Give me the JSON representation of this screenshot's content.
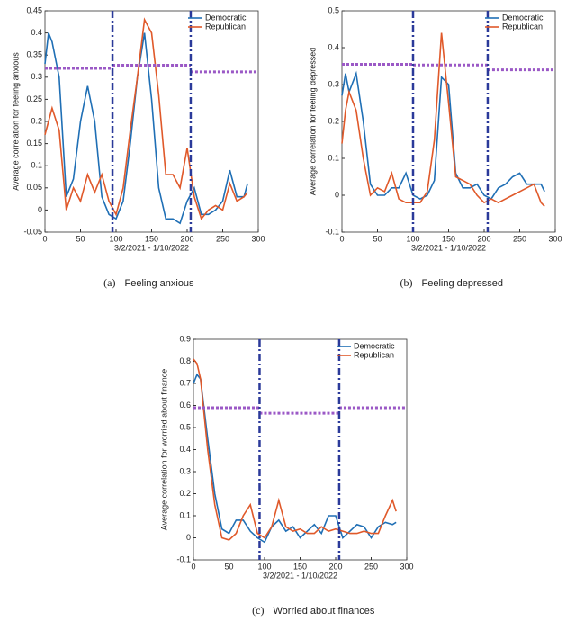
{
  "chart_data": [
    {
      "type": "line",
      "caption_label": "(a)",
      "caption": "Feeling anxious",
      "x_label": "3/2/2021 - 1/10/2022",
      "y_label": "Average correlation for feeling anxious",
      "xlim": [
        0,
        300
      ],
      "xticks": [
        0,
        50,
        100,
        150,
        200,
        250,
        300
      ],
      "ylim": [
        -0.05,
        0.45
      ],
      "yticks": [
        -0.05,
        0,
        0.05,
        0.1,
        0.15,
        0.2,
        0.25,
        0.3,
        0.35,
        0.4,
        0.45
      ],
      "x": [
        0,
        5,
        10,
        20,
        30,
        40,
        50,
        60,
        70,
        80,
        90,
        100,
        110,
        120,
        130,
        140,
        150,
        160,
        170,
        180,
        190,
        200,
        210,
        220,
        230,
        240,
        250,
        260,
        270,
        280,
        285
      ],
      "series": [
        {
          "name": "Democratic",
          "color": "#1f6fb5",
          "values": [
            0.33,
            0.4,
            0.38,
            0.3,
            0.03,
            0.07,
            0.2,
            0.28,
            0.2,
            0.03,
            -0.01,
            -0.02,
            0.02,
            0.15,
            0.3,
            0.4,
            0.25,
            0.05,
            -0.02,
            -0.02,
            -0.03,
            0.02,
            0.05,
            -0.01,
            -0.01,
            0.0,
            0.02,
            0.09,
            0.03,
            0.03,
            0.06
          ]
        },
        {
          "name": "Republican",
          "color": "#e0592a",
          "values": [
            0.17,
            0.2,
            0.23,
            0.18,
            0.0,
            0.05,
            0.02,
            0.08,
            0.04,
            0.08,
            0.02,
            -0.01,
            0.05,
            0.18,
            0.3,
            0.43,
            0.4,
            0.26,
            0.08,
            0.08,
            0.05,
            0.14,
            0.03,
            -0.02,
            0.0,
            0.01,
            0.0,
            0.06,
            0.02,
            0.03,
            0.04
          ]
        }
      ],
      "vlines": [
        95,
        205
      ],
      "hlines": [
        {
          "x": [
            0,
            95
          ],
          "y": 0.32
        },
        {
          "x": [
            95,
            205
          ],
          "y": 0.327
        },
        {
          "x": [
            205,
            300
          ],
          "y": 0.312
        }
      ]
    },
    {
      "type": "line",
      "caption_label": "(b)",
      "caption": "Feeling depressed",
      "x_label": "3/2/2021 - 1/10/2022",
      "y_label": "Average correlation for feeling depressed",
      "xlim": [
        0,
        300
      ],
      "xticks": [
        0,
        50,
        100,
        150,
        200,
        250,
        300
      ],
      "ylim": [
        -0.1,
        0.5
      ],
      "yticks": [
        -0.1,
        0,
        0.1,
        0.2,
        0.3,
        0.4,
        0.5
      ],
      "x": [
        0,
        5,
        10,
        20,
        30,
        40,
        50,
        60,
        70,
        80,
        90,
        100,
        110,
        120,
        130,
        140,
        150,
        160,
        170,
        180,
        190,
        200,
        210,
        220,
        230,
        240,
        250,
        260,
        270,
        280,
        285
      ],
      "series": [
        {
          "name": "Democratic",
          "color": "#1f6fb5",
          "values": [
            0.27,
            0.33,
            0.28,
            0.33,
            0.2,
            0.03,
            0.0,
            0.0,
            0.02,
            0.02,
            0.06,
            0.0,
            -0.01,
            0.0,
            0.04,
            0.32,
            0.3,
            0.06,
            0.02,
            0.02,
            0.03,
            0.0,
            -0.01,
            0.02,
            0.03,
            0.05,
            0.06,
            0.03,
            0.03,
            0.03,
            0.01
          ]
        },
        {
          "name": "Republican",
          "color": "#e0592a",
          "values": [
            0.14,
            0.23,
            0.28,
            0.23,
            0.1,
            0.0,
            0.02,
            0.01,
            0.06,
            -0.01,
            -0.02,
            -0.02,
            -0.02,
            0.01,
            0.15,
            0.44,
            0.25,
            0.05,
            0.04,
            0.03,
            0.0,
            -0.02,
            -0.01,
            -0.02,
            -0.01,
            0.0,
            0.01,
            0.02,
            0.03,
            -0.02,
            -0.03
          ]
        }
      ],
      "vlines": [
        100,
        205
      ],
      "hlines": [
        {
          "x": [
            0,
            100
          ],
          "y": 0.355
        },
        {
          "x": [
            100,
            205
          ],
          "y": 0.353
        },
        {
          "x": [
            205,
            300
          ],
          "y": 0.34
        }
      ]
    },
    {
      "type": "line",
      "caption_label": "(c)",
      "caption": "Worried about finances",
      "x_label": "3/2/2021 - 1/10/2022",
      "y_label": "Average correlation for worried about finance",
      "xlim": [
        0,
        300
      ],
      "xticks": [
        0,
        50,
        100,
        150,
        200,
        250,
        300
      ],
      "ylim": [
        -0.1,
        0.9
      ],
      "yticks": [
        -0.1,
        0,
        0.1,
        0.2,
        0.3,
        0.4,
        0.5,
        0.6,
        0.7,
        0.8,
        0.9
      ],
      "x": [
        0,
        5,
        10,
        20,
        30,
        40,
        50,
        60,
        70,
        80,
        90,
        100,
        110,
        120,
        130,
        140,
        150,
        160,
        170,
        180,
        190,
        200,
        210,
        220,
        230,
        240,
        250,
        260,
        270,
        280,
        285
      ],
      "series": [
        {
          "name": "Democratic",
          "color": "#1f6fb5",
          "values": [
            0.7,
            0.74,
            0.72,
            0.45,
            0.2,
            0.04,
            0.02,
            0.08,
            0.08,
            0.03,
            0.0,
            -0.02,
            0.05,
            0.08,
            0.03,
            0.05,
            0.0,
            0.03,
            0.06,
            0.02,
            0.1,
            0.1,
            0.0,
            0.03,
            0.06,
            0.05,
            0.0,
            0.05,
            0.07,
            0.06,
            0.07
          ]
        },
        {
          "name": "Republican",
          "color": "#e0592a",
          "values": [
            0.81,
            0.79,
            0.72,
            0.4,
            0.15,
            0.0,
            -0.01,
            0.02,
            0.1,
            0.15,
            0.02,
            0.0,
            0.05,
            0.17,
            0.05,
            0.03,
            0.04,
            0.02,
            0.02,
            0.05,
            0.03,
            0.04,
            0.03,
            0.02,
            0.02,
            0.03,
            0.02,
            0.02,
            0.1,
            0.17,
            0.12
          ]
        }
      ],
      "vlines": [
        93,
        205
      ],
      "hlines": [
        {
          "x": [
            0,
            93
          ],
          "y": 0.59
        },
        {
          "x": [
            93,
            205
          ],
          "y": 0.565
        },
        {
          "x": [
            205,
            300
          ],
          "y": 0.59
        }
      ]
    }
  ]
}
